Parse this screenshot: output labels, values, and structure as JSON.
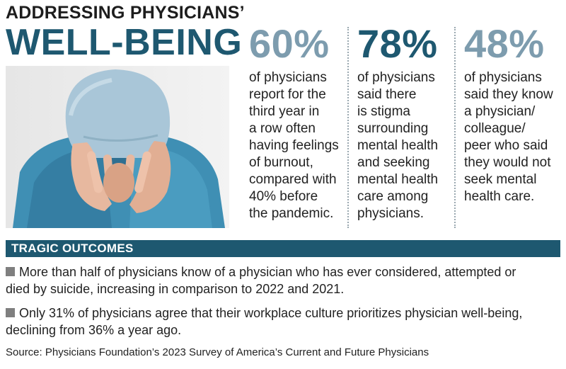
{
  "header": {
    "title_top": "ADDRESSING PHYSICIANS’",
    "title_main": "WELL-BEING"
  },
  "photo": {
    "icon": "stressed-physician-photo"
  },
  "stats": [
    {
      "percent": "60%",
      "color": "#7d9cae",
      "lines": [
        "of physicians",
        "report for the",
        "third year in",
        "a row often",
        "having feelings",
        "of burnout,",
        "compared with",
        "40% before",
        "the pandemic."
      ]
    },
    {
      "percent": "78%",
      "color": "#1e5870",
      "lines": [
        "of physicians",
        "said there",
        "is stigma",
        "surrounding",
        "mental health",
        "and seeking",
        "mental health",
        "care among",
        "physicians."
      ]
    },
    {
      "percent": "48%",
      "color": "#7d9cae",
      "lines": [
        "of physicians",
        "said they know",
        "a physician/",
        "colleague/",
        "peer who said",
        "they would not",
        "seek mental",
        "health care."
      ]
    }
  ],
  "outcomes": {
    "heading": "TRAGIC OUTCOMES",
    "bullets": [
      {
        "line1": "More than half of physicians know of a physician who has ever considered, attempted or",
        "line2": "died by suicide, increasing in comparison to 2022 and 2021."
      },
      {
        "line1": "Only 31% of physicians agree that their workplace culture prioritizes physician well-being,",
        "line2": "declining from 36% a year ago."
      }
    ]
  },
  "source": "Source: Physicians Foundation’s 2023 Survey of America’s Current and Future Physicians",
  "colors": {
    "brand_dark": "#1e5870",
    "brand_light": "#7d9cae",
    "bullet_square": "#7f7f7f"
  }
}
